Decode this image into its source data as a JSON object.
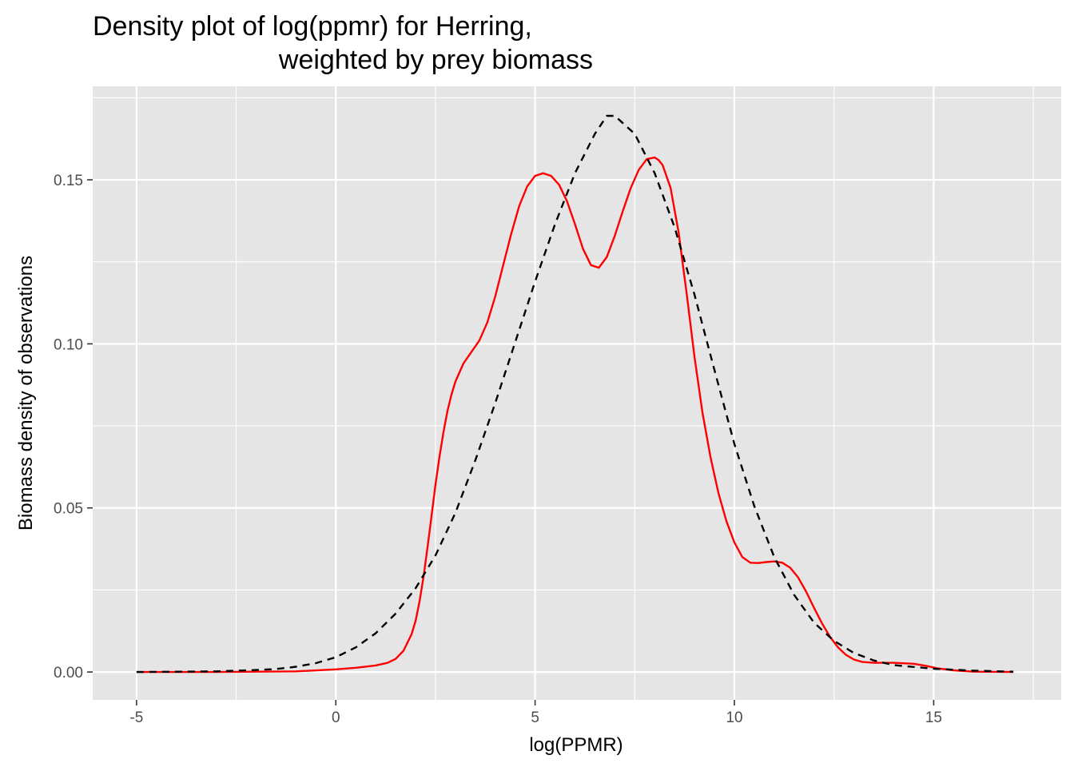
{
  "chart_data": {
    "type": "line",
    "title_lines": [
      "Density plot of log(ppmr) for Herring,",
      "weighted by prey biomass"
    ],
    "xlabel": "log(PPMR)",
    "ylabel": "Biomass density of observations",
    "xlim": [
      -6.1,
      18.2
    ],
    "ylim": [
      -0.0085,
      0.1785
    ],
    "x_ticks": [
      -5,
      0,
      5,
      10,
      15
    ],
    "x_tick_labels": [
      "-5",
      "0",
      "5",
      "10",
      "15"
    ],
    "y_ticks": [
      0,
      0.05,
      0.1,
      0.15
    ],
    "y_tick_labels": [
      "0.00",
      "0.05",
      "0.10",
      "0.15"
    ],
    "x_minor_ticks": [
      -2.5,
      2.5,
      7.5,
      12.5,
      17.5
    ],
    "y_minor_ticks": [
      0.025,
      0.075,
      0.125,
      0.175
    ],
    "grid": true,
    "legend": "none",
    "colors": {
      "panel": "#e5e5e5",
      "grid": "#ffffff",
      "tick_text": "#4d4d4d",
      "tick_mark": "#333333"
    },
    "series": [
      {
        "style": "solid",
        "color": "#ff0000",
        "x": [
          -5,
          -3,
          -1,
          0,
          0.5,
          1,
          1.3,
          1.5,
          1.7,
          1.9,
          2.0,
          2.1,
          2.2,
          2.3,
          2.4,
          2.5,
          2.6,
          2.7,
          2.8,
          2.9,
          3.0,
          3.2,
          3.4,
          3.6,
          3.8,
          4.0,
          4.2,
          4.4,
          4.6,
          4.8,
          5.0,
          5.2,
          5.4,
          5.6,
          5.8,
          6.0,
          6.2,
          6.4,
          6.6,
          6.8,
          7.0,
          7.2,
          7.4,
          7.6,
          7.8,
          8.0,
          8.1,
          8.2,
          8.4,
          8.6,
          8.8,
          9.0,
          9.2,
          9.4,
          9.6,
          9.8,
          10.0,
          10.2,
          10.4,
          10.6,
          10.8,
          11.0,
          11.2,
          11.4,
          11.6,
          11.8,
          12.0,
          12.2,
          12.4,
          12.6,
          12.8,
          13.0,
          13.2,
          13.5,
          14.0,
          14.5,
          14.8,
          15.1,
          15.5,
          16.0,
          17.0
        ],
        "y": [
          0,
          0,
          0.0002,
          0.0008,
          0.0013,
          0.002,
          0.0028,
          0.004,
          0.0065,
          0.0115,
          0.0155,
          0.0215,
          0.029,
          0.038,
          0.0475,
          0.057,
          0.0655,
          0.073,
          0.0795,
          0.0845,
          0.0885,
          0.094,
          0.0975,
          0.101,
          0.1065,
          0.1145,
          0.124,
          0.1335,
          0.142,
          0.148,
          0.1512,
          0.152,
          0.1512,
          0.1485,
          0.1435,
          0.1365,
          0.129,
          0.124,
          0.1232,
          0.1265,
          0.133,
          0.1405,
          0.1475,
          0.153,
          0.1563,
          0.1568,
          0.156,
          0.1545,
          0.1475,
          0.134,
          0.1155,
          0.096,
          0.079,
          0.0655,
          0.0545,
          0.046,
          0.0395,
          0.035,
          0.0333,
          0.0332,
          0.0335,
          0.0337,
          0.0333,
          0.0318,
          0.0288,
          0.0245,
          0.0195,
          0.0148,
          0.0107,
          0.0075,
          0.0052,
          0.0038,
          0.0031,
          0.0028,
          0.0028,
          0.0025,
          0.0019,
          0.0011,
          0.0005,
          0.0001,
          0
        ]
      },
      {
        "style": "dashed",
        "color": "#000000",
        "x": [
          -5,
          -4,
          -3,
          -2,
          -1.5,
          -1,
          -0.5,
          0,
          0.5,
          1,
          1.5,
          2,
          2.5,
          3,
          3.5,
          4,
          4.5,
          5,
          5.5,
          6,
          6.5,
          6.8,
          7,
          7.5,
          8,
          8.5,
          9,
          9.5,
          10,
          10.5,
          11,
          11.5,
          12,
          12.5,
          13,
          13.5,
          14,
          15,
          16,
          17
        ],
        "y": [
          0,
          0.0001,
          0.0002,
          0.0006,
          0.0009,
          0.0016,
          0.0027,
          0.0045,
          0.0075,
          0.0118,
          0.0178,
          0.0255,
          0.0355,
          0.0485,
          0.0645,
          0.082,
          0.1005,
          0.119,
          0.1365,
          0.152,
          0.164,
          0.1695,
          0.1695,
          0.164,
          0.152,
          0.1355,
          0.115,
          0.092,
          0.0695,
          0.0505,
          0.035,
          0.0235,
          0.015,
          0.0095,
          0.0058,
          0.0035,
          0.0021,
          0.001,
          0.0004,
          0.0001
        ]
      }
    ]
  }
}
